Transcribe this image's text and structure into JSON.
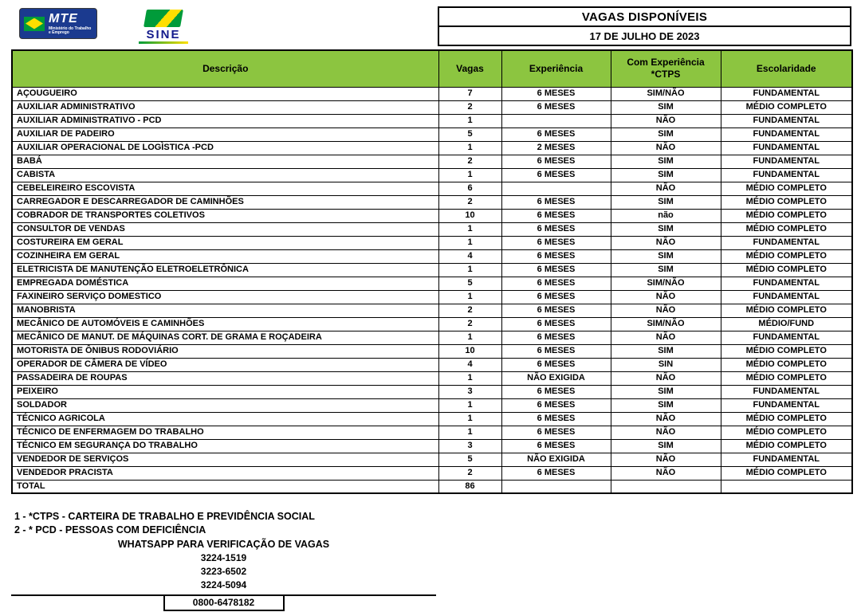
{
  "logos": {
    "mte_title": "MTE",
    "mte_subtitle": "Ministério do Trabalho e Emprego",
    "sine_title": "SINE"
  },
  "header": {
    "title": "VAGAS DISPONÍVEIS",
    "date": "17 DE JULHO DE 2023"
  },
  "table": {
    "columns": [
      "Descrição",
      "Vagas",
      "Experiência",
      "Com Experiência *CTPS",
      "Escolaridade"
    ],
    "rows": [
      [
        "AÇOUGUEIRO",
        "7",
        "6 MESES",
        "SIM/NÃO",
        "FUNDAMENTAL"
      ],
      [
        "AUXILIAR ADMINISTRATIVO",
        "2",
        "6 MESES",
        "SIM",
        "MÉDIO COMPLETO"
      ],
      [
        "AUXILIAR  ADMINISTRATIVO - PCD",
        "1",
        "",
        "NÃO",
        "FUNDAMENTAL"
      ],
      [
        "AUXILIAR DE PADEIRO",
        "5",
        "6 MESES",
        "SIM",
        "FUNDAMENTAL"
      ],
      [
        "AUXILIAR OPERACIONAL DE LOGÌSTICA -PCD",
        "1",
        "2 MESES",
        "NÃO",
        "FUNDAMENTAL"
      ],
      [
        "BABÁ",
        "2",
        "6 MESES",
        "SIM",
        "FUNDAMENTAL"
      ],
      [
        "CABISTA",
        "1",
        "6 MESES",
        "SIM",
        "FUNDAMENTAL"
      ],
      [
        "CEBELEIREIRO ESCOVISTA",
        "6",
        "",
        "NÃO",
        "MÉDIO COMPLETO"
      ],
      [
        "CARREGADOR E DESCARREGADOR DE CAMINHÕES",
        "2",
        "6 MESES",
        "SIM",
        "MÉDIO COMPLETO"
      ],
      [
        "COBRADOR DE TRANSPORTES COLETIVOS",
        "10",
        "6 MESES",
        "não",
        "MÉDIO COMPLETO"
      ],
      [
        "CONSULTOR DE VENDAS",
        "1",
        "6 MESES",
        "SIM",
        "MÉDIO COMPLETO"
      ],
      [
        "COSTUREIRA EM GERAL",
        "1",
        "6 MESES",
        "NÃO",
        "FUNDAMENTAL"
      ],
      [
        "COZINHEIRA EM GERAL",
        "4",
        "6 MESES",
        "SIM",
        "MÉDIO COMPLETO"
      ],
      [
        "ELETRICISTA DE MANUTENÇÃO ELETROELETRÔNICA",
        "1",
        "6 MESES",
        "SIM",
        "MÉDIO COMPLETO"
      ],
      [
        "EMPREGADA DOMÉSTICA",
        "5",
        "6 MESES",
        "SIM/NÃO",
        "FUNDAMENTAL"
      ],
      [
        "FAXINEIRO SERVIÇO DOMESTICO",
        "1",
        "6 MESES",
        "NÃO",
        "FUNDAMENTAL"
      ],
      [
        "MANOBRISTA",
        "2",
        "6 MESES",
        "NÃO",
        "MÉDIO COMPLETO"
      ],
      [
        "MECÂNICO DE AUTOMÓVEIS E CAMINHÕES",
        "2",
        "6 MESES",
        "SIM/NÃO",
        "MÉDIO/FUND"
      ],
      [
        "MECÂNICO DE MANUT. DE MÁQUINAS CORT. DE GRAMA E ROÇADEIRA",
        "1",
        "6 MESES",
        "NÃO",
        "FUNDAMENTAL"
      ],
      [
        "MOTORISTA DE ÔNIBUS RODOVIÁRIO",
        "10",
        "6 MESES",
        "SIM",
        "MÉDIO COMPLETO"
      ],
      [
        "OPERADOR DE CÂMERA DE VÍDEO",
        "4",
        "6 MESES",
        "SIN",
        "MÉDIO COMPLETO"
      ],
      [
        "PASSADEIRA DE ROUPAS",
        "1",
        "NÃO EXIGIDA",
        "NÃO",
        "MÉDIO COMPLETO"
      ],
      [
        "PEIXEIRO",
        "3",
        "6 MESES",
        "SIM",
        "FUNDAMENTAL"
      ],
      [
        "SOLDADOR",
        "1",
        "6 MESES",
        "SIM",
        "FUNDAMENTAL"
      ],
      [
        "TÉCNICO AGRICOLA",
        "1",
        "6 MESES",
        "NÃO",
        "MÉDIO COMPLETO"
      ],
      [
        "TÉCNICO DE ENFERMAGEM DO TRABALHO",
        "1",
        "6 MESES",
        "NÃO",
        "MÉDIO COMPLETO"
      ],
      [
        "TÉCNICO EM SEGURANÇA DO TRABALHO",
        "3",
        "6 MESES",
        "SIM",
        "MÉDIO COMPLETO"
      ],
      [
        "VENDEDOR DE SERVIÇOS",
        "5",
        "NÃO EXIGIDA",
        "NÃO",
        "FUNDAMENTAL"
      ],
      [
        "VENDEDOR PRACISTA",
        "2",
        "6 MESES",
        "NÃO",
        "MÉDIO COMPLETO"
      ]
    ],
    "total": {
      "label": "TOTAL",
      "vagas": "86"
    }
  },
  "footer": {
    "notes": [
      "1 - *CTPS - CARTEIRA DE TRABALHO E PREVIDÊNCIA SOCIAL",
      "2 - * PCD - PESSOAS COM DEFICIÊNCIA"
    ],
    "whatsapp_label": "WHATSAPP PARA VERIFICAÇÃO DE VAGAS",
    "phones": [
      "3224-1519",
      "3223-6502",
      "3224-5094"
    ],
    "hotline": "0800-6478182"
  },
  "colors": {
    "header_green": "#8CC540"
  }
}
